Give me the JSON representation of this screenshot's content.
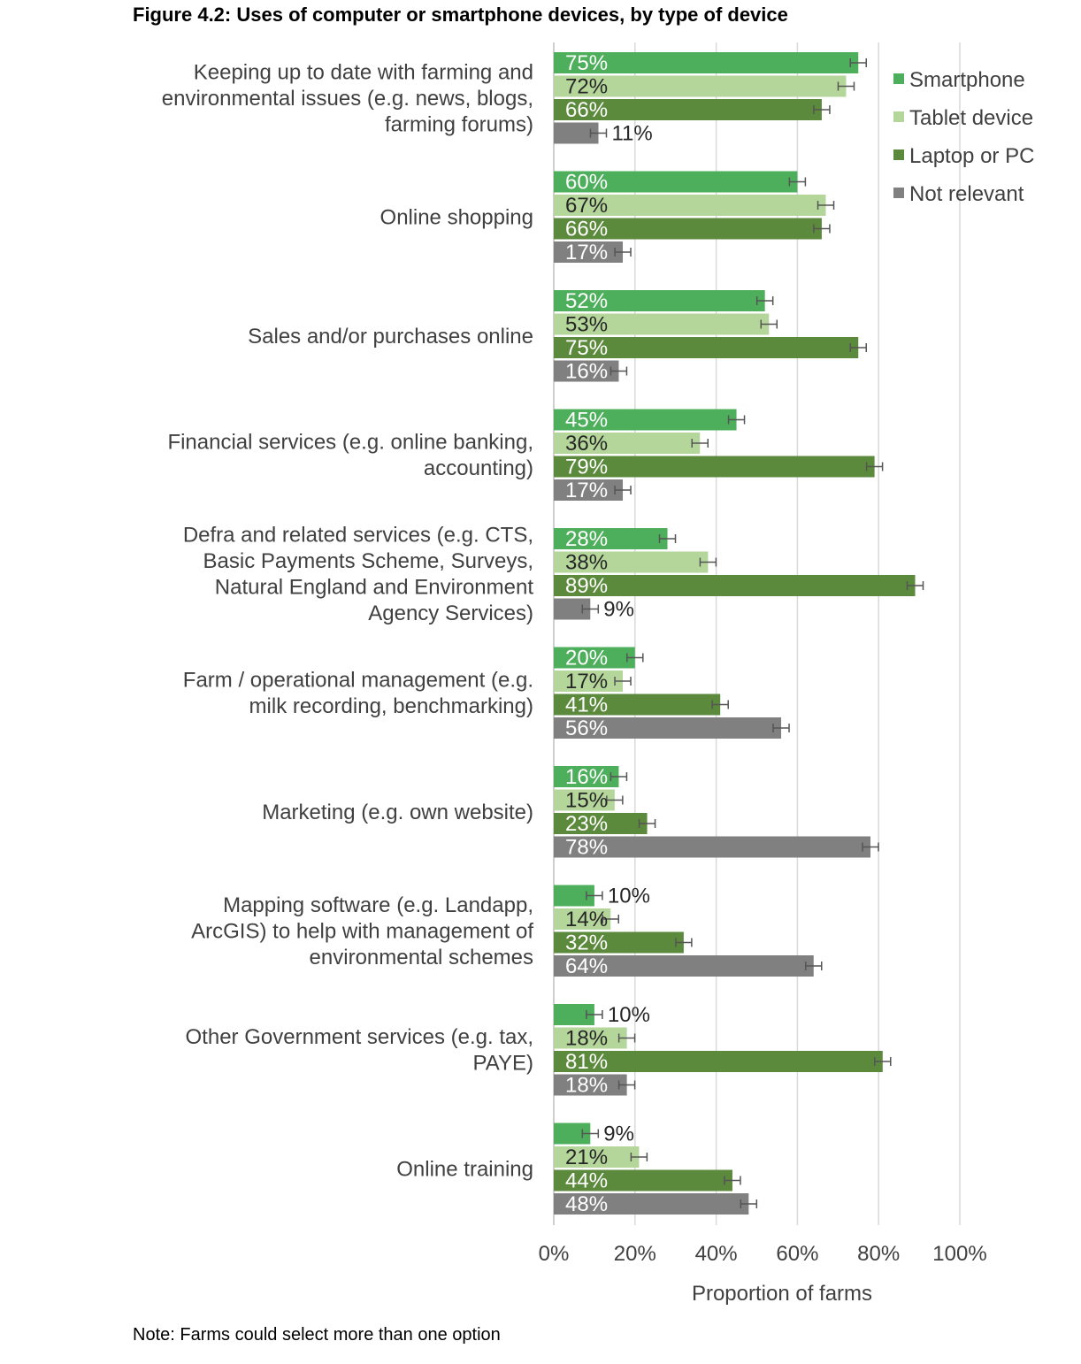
{
  "title": "Figure 4.2: Uses of computer or smartphone devices, by type of device",
  "note": "Note: Farms could select more than one option",
  "chart_data": {
    "type": "bar",
    "orientation": "horizontal",
    "xlabel": "Proportion of farms",
    "xlim": [
      0,
      100
    ],
    "x_ticks": [
      "0%",
      "20%",
      "40%",
      "60%",
      "80%",
      "100%"
    ],
    "grid": "vertical",
    "legend_position": "top-right",
    "error_bars": true,
    "categories": [
      [
        "Keeping up to date with farming and",
        "environmental issues (e.g. news, blogs,",
        "farming forums)"
      ],
      [
        "Online shopping"
      ],
      [
        "Sales and/or purchases online"
      ],
      [
        "Financial services (e.g. online banking,",
        "accounting)"
      ],
      [
        "Defra and related services (e.g. CTS,",
        "Basic Payments Scheme, Surveys,",
        "Natural England and Environment",
        "Agency Services)"
      ],
      [
        "Farm / operational management (e.g.",
        "milk recording, benchmarking)"
      ],
      [
        "Marketing (e.g. own website)"
      ],
      [
        "Mapping software (e.g. Landapp,",
        "ArcGIS) to help with management of",
        "environmental schemes"
      ],
      [
        "Other Government services (e.g. tax,",
        "PAYE)"
      ],
      [
        "Online training"
      ]
    ],
    "series": [
      {
        "name": "Smartphone",
        "color": "#4daf5b",
        "values": [
          75,
          60,
          52,
          45,
          28,
          20,
          16,
          10,
          10,
          9
        ]
      },
      {
        "name": "Tablet device",
        "color": "#b5d69a",
        "values": [
          72,
          67,
          53,
          36,
          38,
          17,
          15,
          14,
          18,
          21
        ]
      },
      {
        "name": "Laptop or PC",
        "color": "#5c8a3c",
        "values": [
          66,
          66,
          75,
          79,
          89,
          41,
          23,
          32,
          81,
          44
        ]
      },
      {
        "name": "Not relevant",
        "color": "#808080",
        "values": [
          11,
          17,
          16,
          17,
          9,
          56,
          78,
          64,
          18,
          48
        ]
      }
    ]
  }
}
